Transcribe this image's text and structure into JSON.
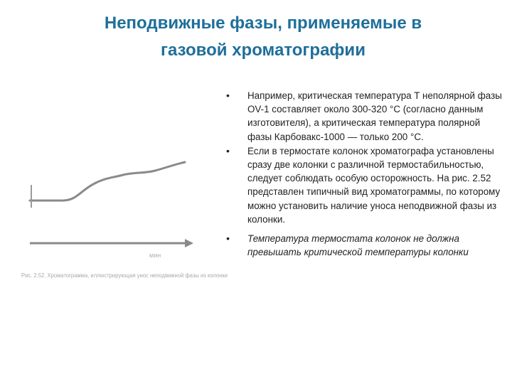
{
  "title": {
    "line1": "Неподвижные фазы, применяемые в",
    "line2": "газовой хроматографии"
  },
  "figure": {
    "axis_label": "мин",
    "caption": "Рис. 2.52. Хроматограмма, иллюстрирующая унос неподвижной фазы из колонки"
  },
  "bullets": [
    "Например, критическая температура T неполярной фазы OV-1 составляет около 300-320 °С (согласно данным изготовителя), а критическая температура полярной фазы Карбовакс-1000 — только 200 °С.",
    "Если в термостате колонок хроматографа установлены сразу две колонки с различной термостабильностью, следует соблюдать особую осторожность. На рис. 2.52 представлен типичный вид хроматограммы, по которому можно установить наличие уноса неподвижной фазы из колонки.",
    "Температура термостата колонок не должна превышать критической температуры колонки"
  ],
  "colors": {
    "title": "#1f6f9a",
    "figure_lines": "#8a8a8a"
  }
}
